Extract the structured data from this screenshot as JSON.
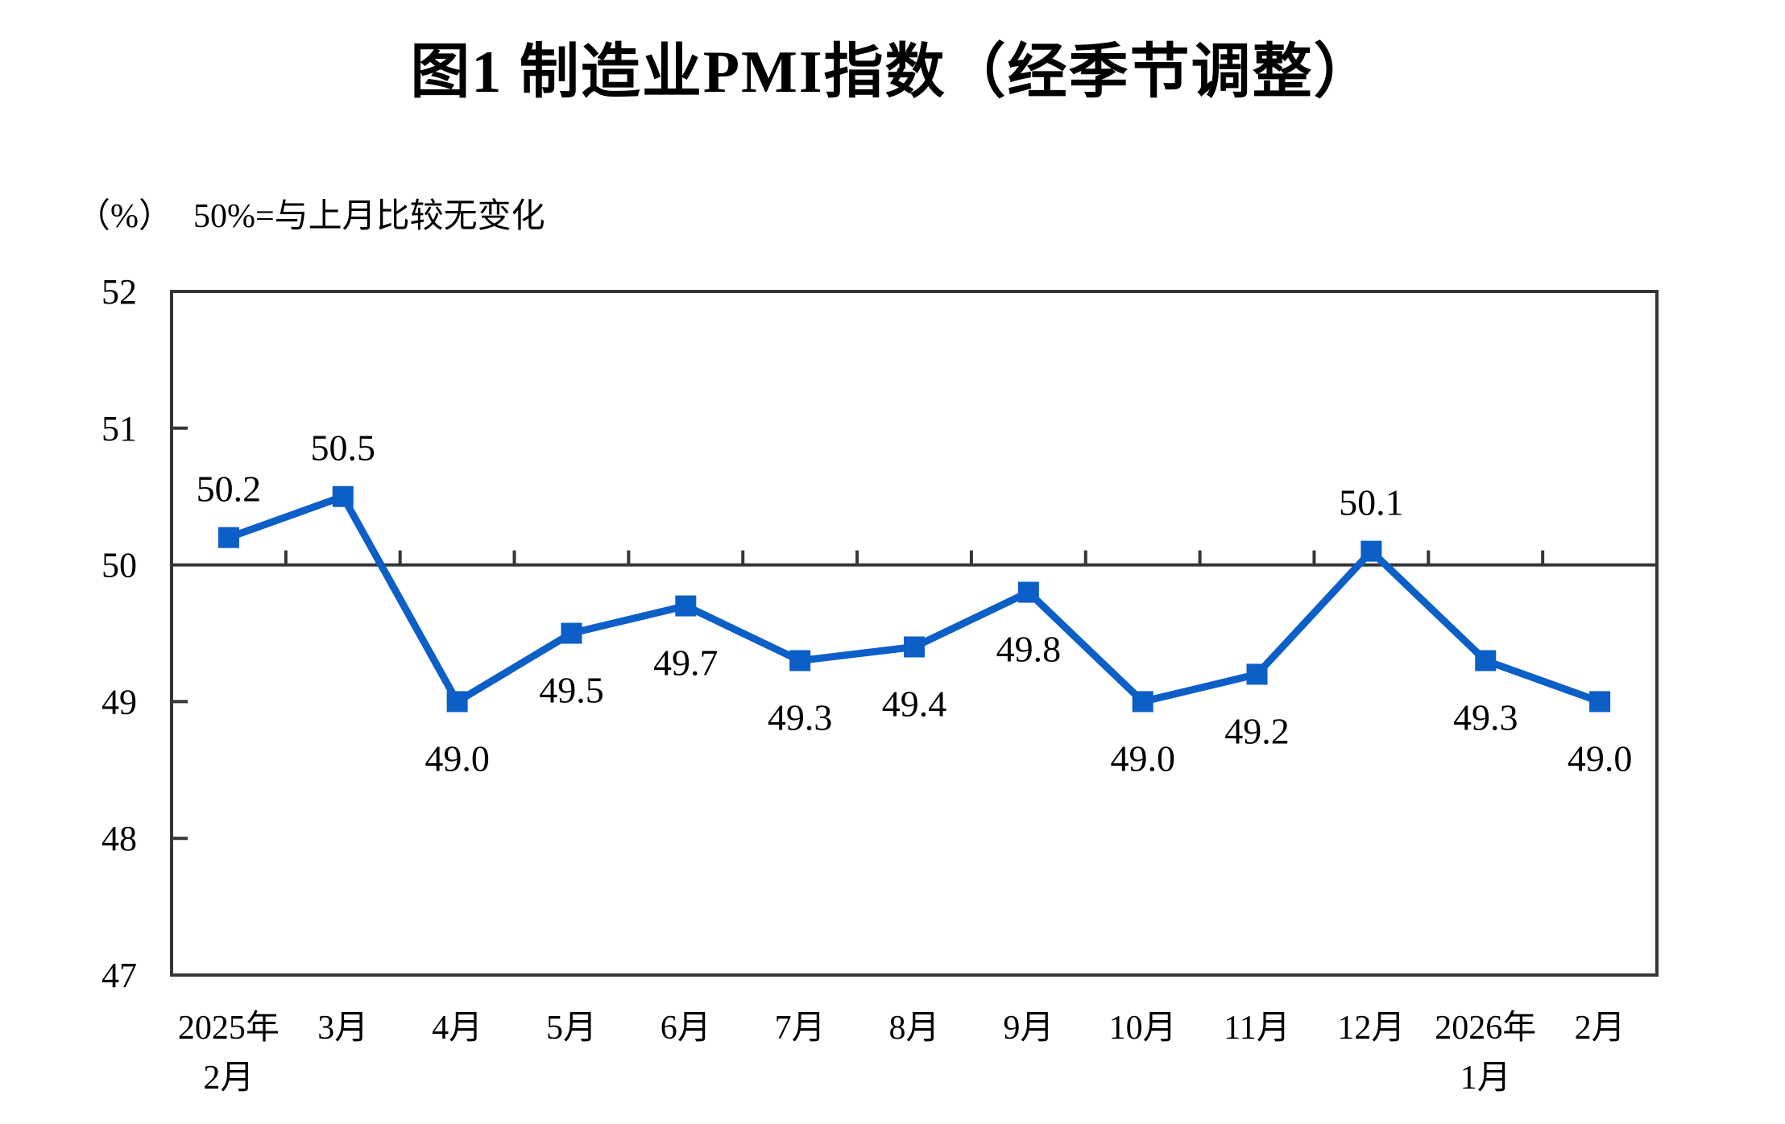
{
  "title": "图1 制造业PMI指数（经季节调整）",
  "note": {
    "unit": "（%）",
    "text": "50%=与上月比较无变化"
  },
  "colors": {
    "axis": "#363636",
    "text": "#000000",
    "background": "#ffffff"
  },
  "chart_data": {
    "type": "line",
    "title": "图1 制造业PMI指数（经季节调整）",
    "subtitle": "50%=与上月比较无变化",
    "unit_label": "（%）",
    "series_name": "制造业PMI指数",
    "categories": [
      [
        "2025年",
        "2月"
      ],
      [
        "3月"
      ],
      [
        "4月"
      ],
      [
        "5月"
      ],
      [
        "6月"
      ],
      [
        "7月"
      ],
      [
        "8月"
      ],
      [
        "9月"
      ],
      [
        "10月"
      ],
      [
        "11月"
      ],
      [
        "12月"
      ],
      [
        "2026年",
        "1月"
      ],
      [
        "2月"
      ]
    ],
    "values": [
      50.2,
      50.5,
      49.0,
      49.5,
      49.7,
      49.3,
      49.4,
      49.8,
      49.0,
      49.2,
      50.1,
      49.3,
      49.0
    ],
    "label_positions": [
      "above",
      "above",
      "below",
      "below",
      "below",
      "below",
      "below",
      "below",
      "below",
      "below",
      "above",
      "below",
      "below"
    ],
    "ylim": [
      47,
      52
    ],
    "yticks": [
      47,
      48,
      49,
      50,
      51,
      52
    ],
    "reference_line": 50,
    "grid": false,
    "legend": "none",
    "line_color": "#0C5FC6",
    "marker": "square"
  }
}
